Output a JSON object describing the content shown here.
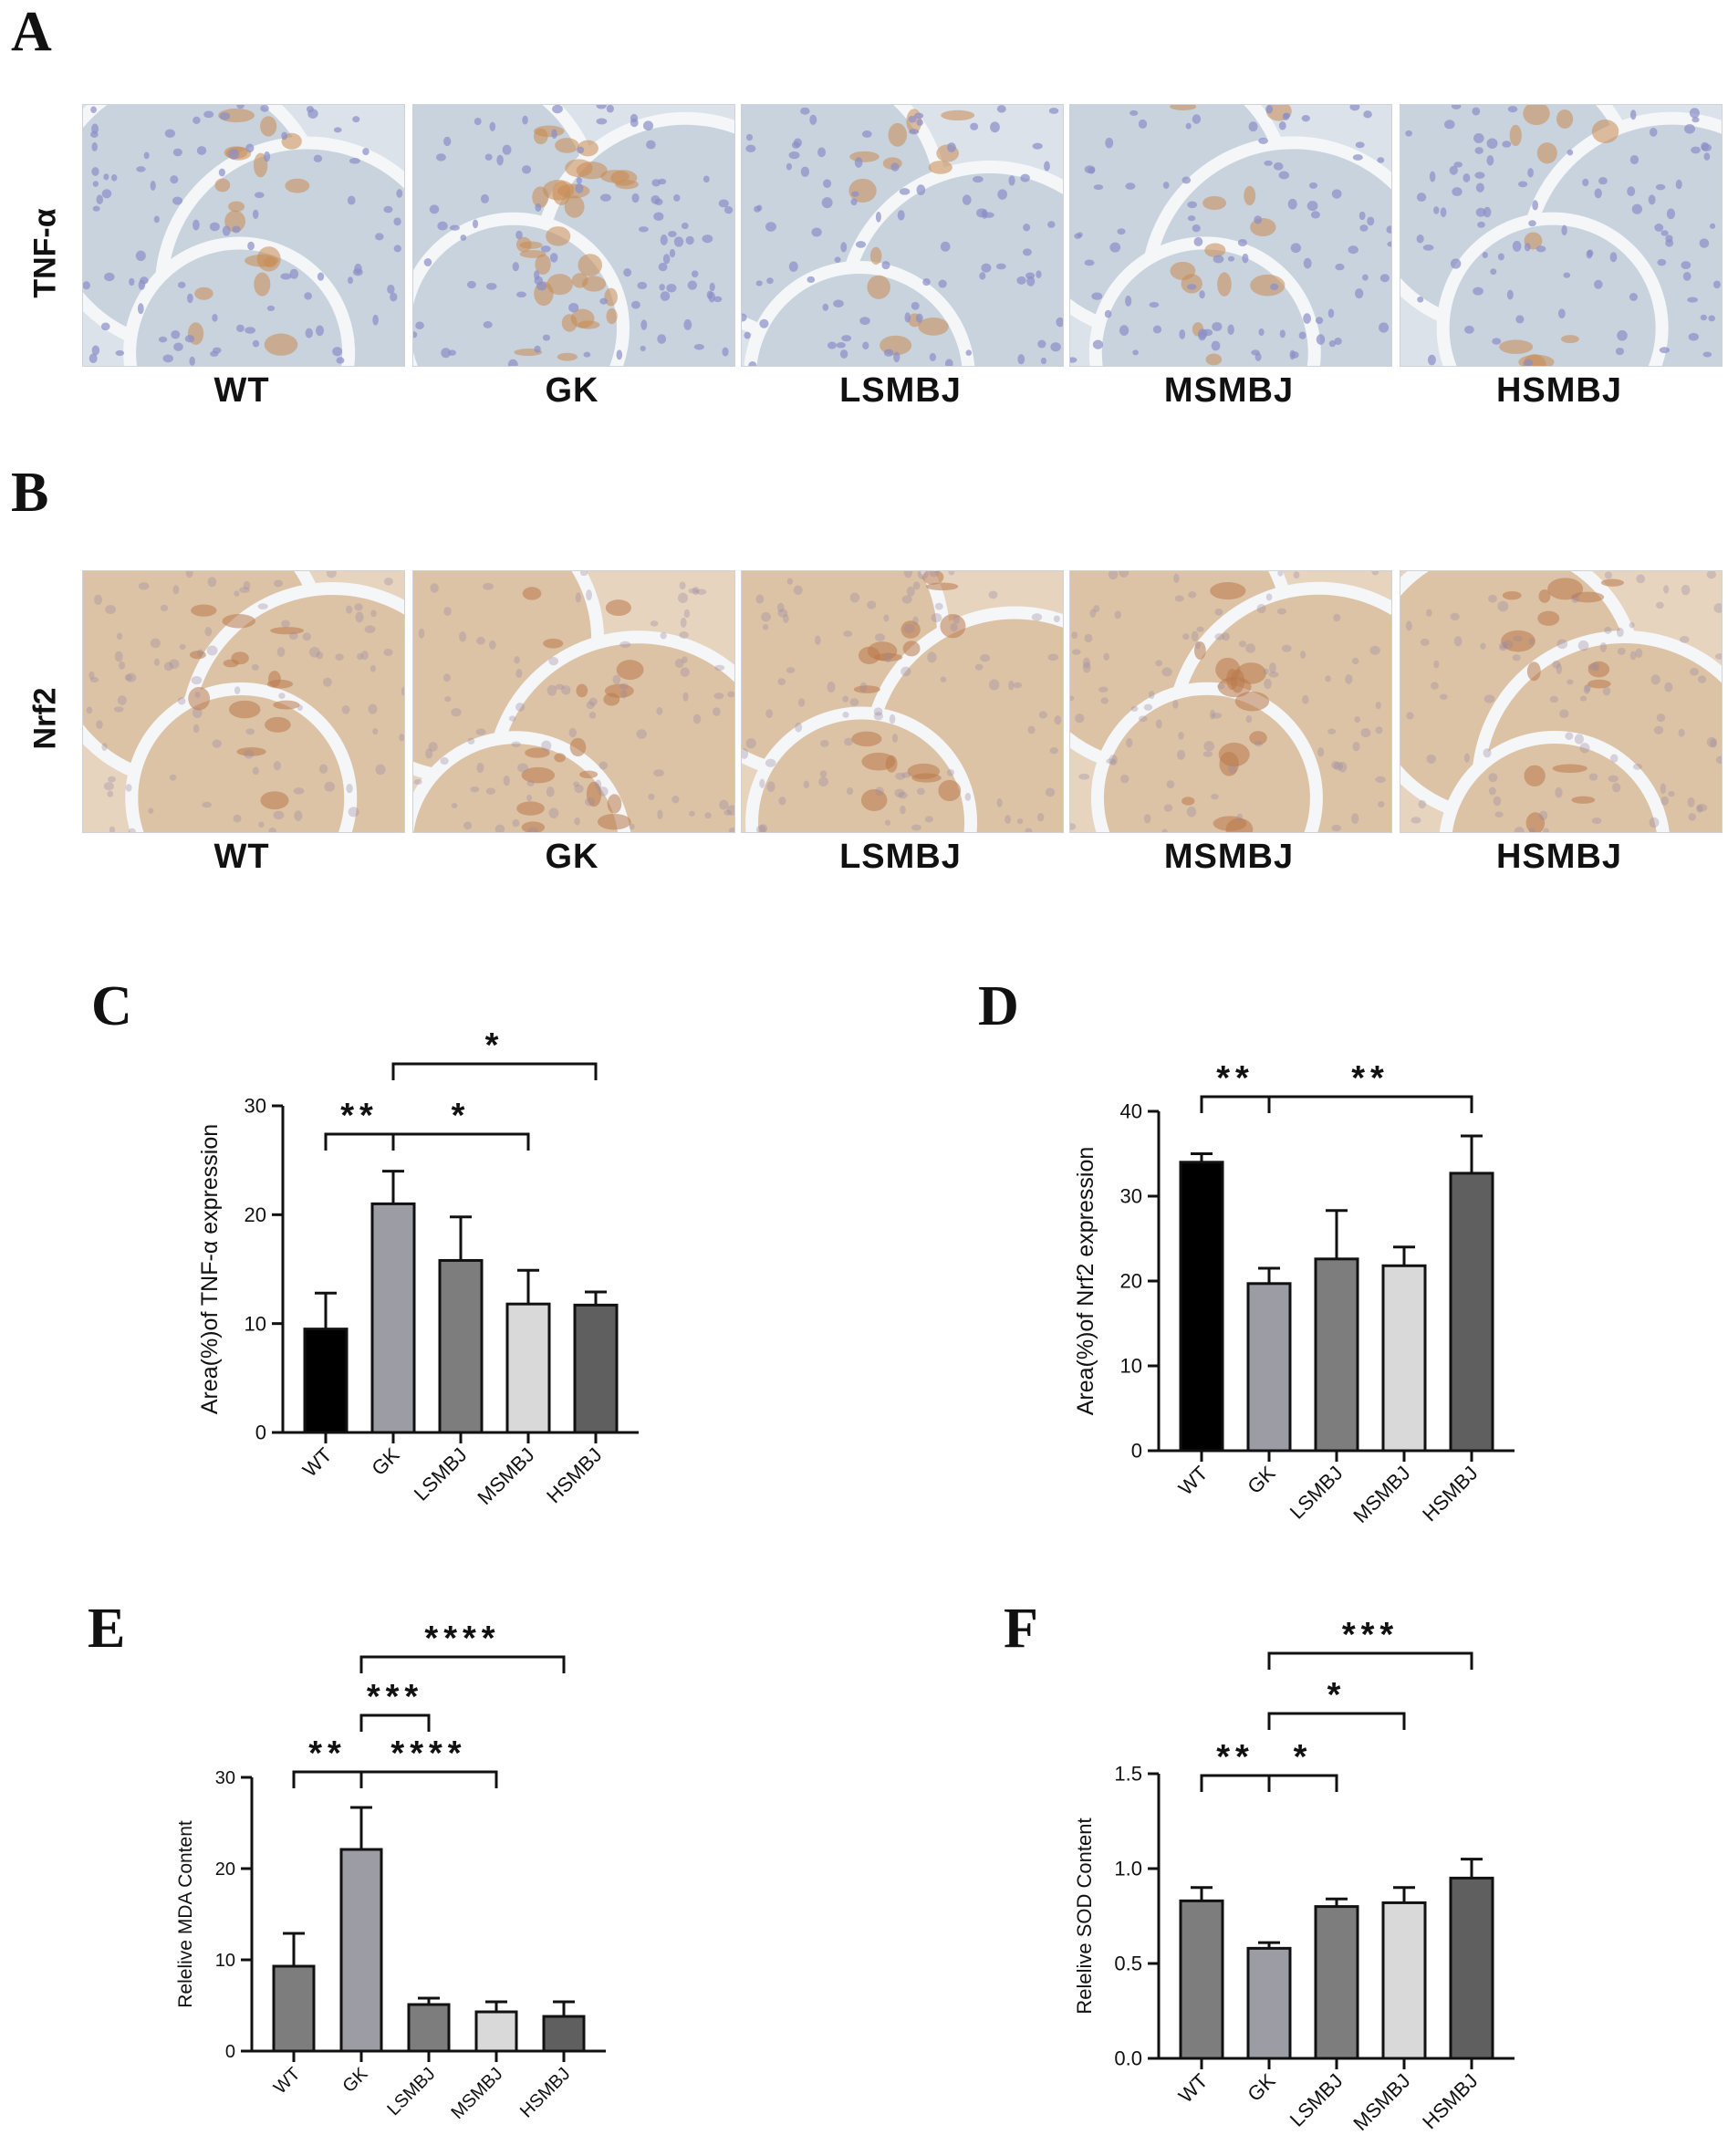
{
  "panels": {
    "A": {
      "letter": "A",
      "row_label": "TNF-α",
      "groups": [
        "WT",
        "GK",
        "LSMBJ",
        "MSMBJ",
        "HSMBJ"
      ]
    },
    "B": {
      "letter": "B",
      "row_label": "Nrf2",
      "groups": [
        "WT",
        "GK",
        "LSMBJ",
        "MSMBJ",
        "HSMBJ"
      ]
    }
  },
  "colors": {
    "WT_C": "#000000",
    "GK": "#9c9ca4",
    "LSMBJ": "#7d7d7d",
    "MSMBJ": "#d9d9d9",
    "HSMBJ": "#5f5f5f",
    "generic": "#7d7d7d",
    "tissue_A": "#dbe2ea",
    "tissue_B": "#e7d4bf",
    "stain_brown": "#c98a52",
    "nuclei": "#8a8fc7"
  },
  "chart_data": [
    {
      "id": "C",
      "letter": "C",
      "type": "bar",
      "categories": [
        "WT",
        "GK",
        "LSMBJ",
        "MSMBJ",
        "HSMBJ"
      ],
      "values": [
        9.5,
        21,
        15.8,
        11.8,
        11.7
      ],
      "errors": [
        3.3,
        3.0,
        4.0,
        3.1,
        1.2
      ],
      "colors": [
        "#000000",
        "#9c9ca4",
        "#7d7d7d",
        "#d9d9d9",
        "#5f5f5f"
      ],
      "ylabel": "Area(%)of TNF-α expression",
      "ylim": [
        0,
        30
      ],
      "yticks": [
        "0",
        "10",
        "20",
        "30"
      ],
      "significance": [
        {
          "from": 0,
          "to": 1,
          "label": "**"
        },
        {
          "from": 1,
          "to": 3,
          "label": "*"
        },
        {
          "from": 1,
          "to": 4,
          "label": "*"
        }
      ]
    },
    {
      "id": "D",
      "letter": "D",
      "type": "bar",
      "categories": [
        "WT",
        "GK",
        "LSMBJ",
        "MSMBJ",
        "HSMBJ"
      ],
      "values": [
        34,
        19.7,
        22.6,
        21.8,
        32.7
      ],
      "errors": [
        1.0,
        1.8,
        5.7,
        2.2,
        4.4
      ],
      "colors": [
        "#000000",
        "#9c9ca4",
        "#7d7d7d",
        "#d9d9d9",
        "#5f5f5f"
      ],
      "ylabel": "Area(%)of Nrf2 expression",
      "ylim": [
        0,
        40
      ],
      "yticks": [
        "0",
        "10",
        "20",
        "30",
        "40"
      ],
      "significance": [
        {
          "from": 0,
          "to": 1,
          "label": "**"
        },
        {
          "from": 1,
          "to": 4,
          "label": "**"
        }
      ]
    },
    {
      "id": "E",
      "letter": "E",
      "type": "bar",
      "categories": [
        "WT",
        "GK",
        "LSMBJ",
        "MSMBJ",
        "HSMBJ"
      ],
      "values": [
        9.3,
        22.1,
        5.1,
        4.3,
        3.8
      ],
      "errors": [
        3.6,
        4.6,
        0.7,
        1.1,
        1.6
      ],
      "colors": [
        "#7d7d7d",
        "#9c9ca4",
        "#7d7d7d",
        "#d9d9d9",
        "#5f5f5f"
      ],
      "ylabel": "Relelive MDA Content",
      "ylim": [
        0,
        30
      ],
      "yticks": [
        "0",
        "10",
        "20",
        "30"
      ],
      "significance": [
        {
          "from": 0,
          "to": 1,
          "label": "**"
        },
        {
          "from": 1,
          "to": 3,
          "label": "****"
        },
        {
          "from": 1,
          "to": 2,
          "label": "***"
        },
        {
          "from": 1,
          "to": 4,
          "label": "****"
        }
      ]
    },
    {
      "id": "F",
      "letter": "F",
      "type": "bar",
      "categories": [
        "WT",
        "GK",
        "LSMBJ",
        "MSMBJ",
        "HSMBJ"
      ],
      "values": [
        0.83,
        0.58,
        0.8,
        0.82,
        0.95
      ],
      "errors": [
        0.07,
        0.03,
        0.04,
        0.08,
        0.1
      ],
      "colors": [
        "#7d7d7d",
        "#9c9ca4",
        "#7d7d7d",
        "#d9d9d9",
        "#5f5f5f"
      ],
      "ylabel": "Relelive SOD Content",
      "ylim": [
        0,
        1.5
      ],
      "yticks": [
        "0.0",
        "0.5",
        "1.0",
        "1.5"
      ],
      "significance": [
        {
          "from": 0,
          "to": 1,
          "label": "**"
        },
        {
          "from": 1,
          "to": 2,
          "label": "*"
        },
        {
          "from": 1,
          "to": 3,
          "label": "*"
        },
        {
          "from": 1,
          "to": 4,
          "label": "***"
        }
      ]
    }
  ]
}
